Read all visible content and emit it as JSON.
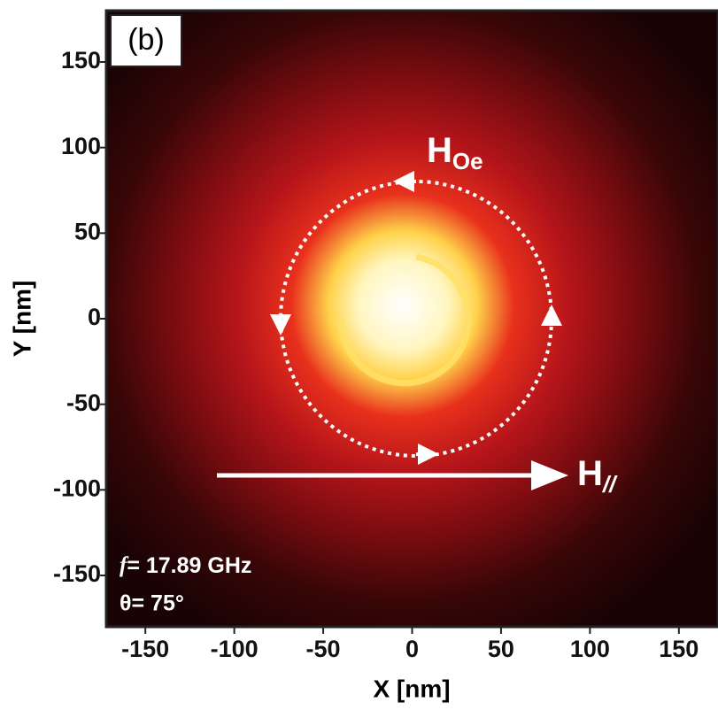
{
  "chart_data": {
    "type": "image",
    "panel_label": "(b)",
    "xlabel": "X [nm]",
    "ylabel": "Y [nm]",
    "xlim": [
      -172,
      172
    ],
    "ylim": [
      -180,
      180
    ],
    "xticks": [
      -150,
      -100,
      -50,
      0,
      50,
      100,
      150
    ],
    "yticks": [
      150,
      100,
      50,
      0,
      -50,
      -100,
      -150
    ],
    "field_oe": {
      "label": "H",
      "subscript": "Oe"
    },
    "field_parallel": {
      "label": "H",
      "subscript": "//"
    },
    "frequency": {
      "symbol": "f",
      "text": "= 17.89 GHz"
    },
    "angle": "θ= 75°"
  }
}
